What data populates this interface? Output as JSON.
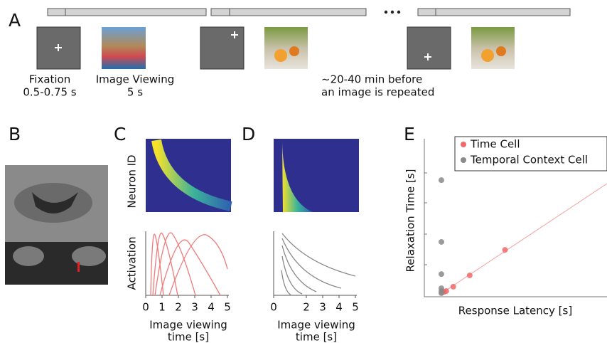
{
  "panel_a": {
    "label": "A",
    "fixation": "Fixation",
    "fixation_duration": "0.5-0.75 s",
    "viewing": "Image Viewing",
    "viewing_duration": "5 s",
    "repeat_note": [
      "~20-40 min before",
      "an image is repeated"
    ]
  },
  "panel_b": {
    "label": "B"
  },
  "panel_c": {
    "label": "C",
    "heatmap_ylabel": "Neuron ID",
    "ylabel": "Activation",
    "xlabel": [
      "Image viewing",
      "time [s]"
    ],
    "xlim": [
      0,
      5
    ],
    "xticks": [
      0,
      1,
      2,
      3,
      4,
      5
    ]
  },
  "panel_d": {
    "label": "D",
    "xlabel": [
      "Image viewing",
      "time [s]"
    ],
    "xlim": [
      0,
      5
    ],
    "xticks": [
      0,
      2,
      3,
      4,
      5
    ]
  },
  "chart_data": {
    "type": "scatter",
    "label": "E",
    "xlabel": "Response Latency [s]",
    "ylabel": "Relaxation Time [s]",
    "xlim": [
      0,
      6
    ],
    "ylim": [
      0,
      6
    ],
    "series": [
      {
        "name": "Time Cell",
        "color": "#f06a6a",
        "x": [
          0.58,
          0.65,
          0.72,
          0.95,
          1.49,
          2.65
        ],
        "values": [
          0.17,
          0.19,
          0.22,
          0.39,
          0.83,
          1.82
        ]
      },
      {
        "name": "Temporal Context Cell",
        "color": "#8a8a8a",
        "x": [
          0.56,
          0.56,
          0.56,
          0.56,
          0.56,
          0.56
        ],
        "values": [
          4.53,
          2.13,
          0.88,
          0.33,
          0.22,
          0.14
        ]
      }
    ]
  }
}
